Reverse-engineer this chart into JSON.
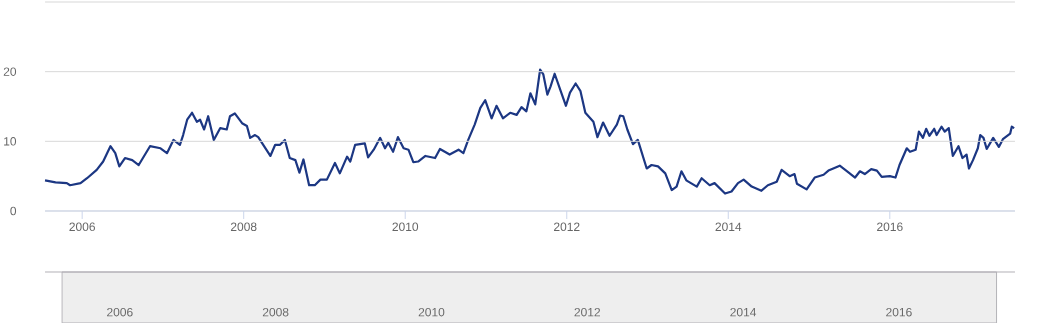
{
  "chart_data": {
    "type": "line",
    "color": "#1c3783",
    "xlim": [
      2005.54,
      2017.55
    ],
    "ylim": [
      0,
      30
    ],
    "x2lim": [
      2005.04,
      2017.49
    ],
    "x2ticks": [
      2006,
      2008,
      2010,
      2012,
      2014,
      2016
    ],
    "xticks": [
      2006,
      2008,
      2010,
      2012,
      2014,
      2016
    ],
    "yticks": [
      0,
      10,
      20,
      {
        "value": 30,
        "label": null
      }
    ],
    "grid": "y",
    "x": [
      2005.54,
      2005.67,
      2005.81,
      2005.85,
      2005.98,
      2006.06,
      2006.18,
      2006.26,
      2006.35,
      2006.41,
      2006.46,
      2006.53,
      2006.62,
      2006.7,
      2006.84,
      2006.97,
      2007.05,
      2007.13,
      2007.21,
      2007.25,
      2007.3,
      2007.36,
      2007.42,
      2007.46,
      2007.51,
      2007.56,
      2007.63,
      2007.71,
      2007.79,
      2007.83,
      2007.89,
      2007.98,
      2008.04,
      2008.08,
      2008.14,
      2008.18,
      2008.27,
      2008.33,
      2008.39,
      2008.45,
      2008.51,
      2008.57,
      2008.64,
      2008.69,
      2008.74,
      2008.81,
      2008.88,
      2008.95,
      2009.03,
      2009.13,
      2009.19,
      2009.28,
      2009.32,
      2009.38,
      2009.5,
      2009.54,
      2009.61,
      2009.69,
      2009.75,
      2009.79,
      2009.85,
      2009.91,
      2009.98,
      2010.04,
      2010.1,
      2010.16,
      2010.25,
      2010.37,
      2010.43,
      2010.55,
      2010.66,
      2010.72,
      2010.78,
      2010.86,
      2010.93,
      2010.99,
      2011.07,
      2011.13,
      2011.21,
      2011.3,
      2011.38,
      2011.44,
      2011.5,
      2011.55,
      2011.61,
      2011.67,
      2011.71,
      2011.76,
      2011.8,
      2011.85,
      2011.92,
      2011.99,
      2012.04,
      2012.11,
      2012.17,
      2012.23,
      2012.33,
      2012.38,
      2012.45,
      2012.53,
      2012.62,
      2012.66,
      2012.7,
      2012.75,
      2012.82,
      2012.88,
      2012.99,
      2013.05,
      2013.13,
      2013.22,
      2013.3,
      2013.36,
      2013.42,
      2013.48,
      2013.61,
      2013.67,
      2013.77,
      2013.83,
      2013.96,
      2014.04,
      2014.12,
      2014.19,
      2014.29,
      2014.41,
      2014.49,
      2014.6,
      2014.66,
      2014.76,
      2014.82,
      2014.85,
      2014.97,
      2015.07,
      2015.18,
      2015.24,
      2015.3,
      2015.38,
      2015.46,
      2015.57,
      2015.63,
      2015.69,
      2015.77,
      2015.84,
      2015.9,
      2016.0,
      2016.07,
      2016.12,
      2016.21,
      2016.25,
      2016.32,
      2016.36,
      2016.41,
      2016.45,
      2016.49,
      2016.55,
      2016.58,
      2016.64,
      2016.68,
      2016.73,
      2016.78,
      2016.85,
      2016.9,
      2016.95,
      2016.98,
      2017.03,
      2017.09,
      2017.12,
      2017.16,
      2017.2,
      2017.28,
      2017.35,
      2017.4,
      2017.49,
      2017.51,
      2017.54
    ],
    "values": [
      4.4,
      4.1,
      4.0,
      3.7,
      4.0,
      4.7,
      5.9,
      7.1,
      9.3,
      8.3,
      6.4,
      7.6,
      7.3,
      6.6,
      9.3,
      9.0,
      8.3,
      10.2,
      9.5,
      10.9,
      13.1,
      14.1,
      12.8,
      13.1,
      11.7,
      13.6,
      10.2,
      11.9,
      11.7,
      13.6,
      14.0,
      12.6,
      12.2,
      10.5,
      10.9,
      10.6,
      9.0,
      7.9,
      9.5,
      9.5,
      10.2,
      7.6,
      7.3,
      5.5,
      7.4,
      3.7,
      3.7,
      4.5,
      4.5,
      6.9,
      5.4,
      7.8,
      7.1,
      9.5,
      9.7,
      7.7,
      8.8,
      10.5,
      9.0,
      9.8,
      8.5,
      10.6,
      9.0,
      8.8,
      7.0,
      7.1,
      7.9,
      7.6,
      8.9,
      8.1,
      8.8,
      8.3,
      10.2,
      12.4,
      14.8,
      15.9,
      13.3,
      15.1,
      13.3,
      14.1,
      13.8,
      14.9,
      14.3,
      16.9,
      15.3,
      20.3,
      19.6,
      16.7,
      17.9,
      19.7,
      17.4,
      15.1,
      17.0,
      18.3,
      17.2,
      14.1,
      12.8,
      10.6,
      12.7,
      10.8,
      12.4,
      13.7,
      13.6,
      11.7,
      9.6,
      10.2,
      6.1,
      6.6,
      6.4,
      5.4,
      3.0,
      3.5,
      5.7,
      4.4,
      3.5,
      4.7,
      3.7,
      4.0,
      2.5,
      2.8,
      4.0,
      4.5,
      3.5,
      2.9,
      3.7,
      4.2,
      5.9,
      5.0,
      5.3,
      3.9,
      3.1,
      4.8,
      5.2,
      5.8,
      6.1,
      6.5,
      5.8,
      4.8,
      5.7,
      5.3,
      6.0,
      5.8,
      4.9,
      5.0,
      4.8,
      6.6,
      9.0,
      8.5,
      8.8,
      11.4,
      10.5,
      11.8,
      10.8,
      11.8,
      10.9,
      12.1,
      11.4,
      11.9,
      7.9,
      9.3,
      7.6,
      8.1,
      6.1,
      7.3,
      9.0,
      10.9,
      10.5,
      8.9,
      10.5,
      9.2,
      10.3,
      11.1,
      12.1,
      11.9
    ]
  }
}
